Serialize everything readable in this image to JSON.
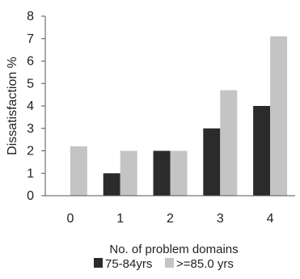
{
  "chart_data": {
    "type": "bar",
    "categories": [
      "0",
      "1",
      "2",
      "3",
      "4"
    ],
    "series": [
      {
        "name": "75-84yrs",
        "values": [
          0,
          1,
          2,
          3,
          4
        ],
        "color": "#2b2b2b"
      },
      {
        "name": ">=85.0 yrs",
        "values": [
          2.2,
          2,
          2,
          4.7,
          7.1
        ],
        "color": "#c4c4c4"
      }
    ],
    "title": "",
    "xlabel": "No. of problem domains",
    "ylabel": "Dissatisfaction %",
    "ylim": [
      0,
      8
    ],
    "yticks": [
      0,
      1,
      2,
      3,
      4,
      5,
      6,
      7,
      8
    ],
    "grid": false,
    "legend_position": "bottom"
  }
}
